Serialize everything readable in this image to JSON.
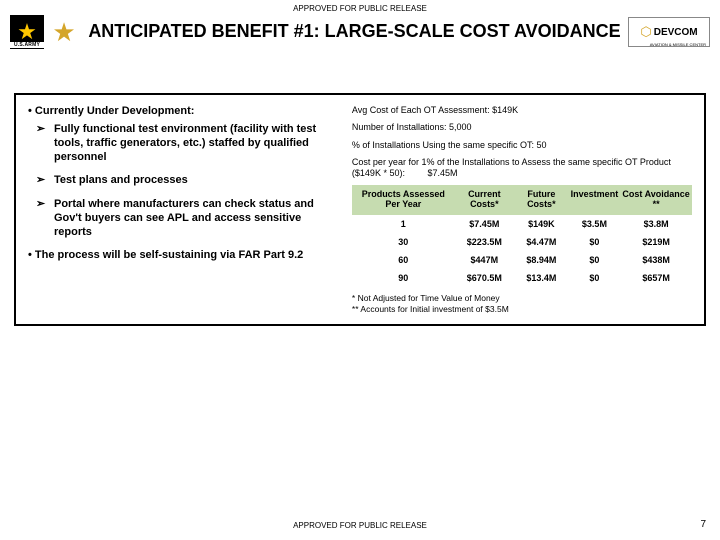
{
  "classification": "APPROVED FOR PUBLIC RELEASE",
  "title": "ANTICIPATED BENEFIT #1:  LARGE-SCALE COST AVOIDANCE",
  "logos": {
    "army_label": "U.S.ARMY",
    "devcom_text": "DEVCOM",
    "devcom_sub": "AVIATION & MISSILE CENTER"
  },
  "left": {
    "heading1": "• Currently Under Development:",
    "bullets": [
      "Fully functional test environment (facility with test tools, traffic generators, etc.) staffed by qualified personnel",
      "Test plans and processes",
      "Portal where manufacturers can check status and Gov't buyers can see APL and access sensitive reports"
    ],
    "heading2": "• The process will be self-sustaining via FAR Part 9.2"
  },
  "right": {
    "lines": [
      "Avg Cost of Each OT Assessment: $149K",
      "Number of Installations: 5,000",
      "% of Installations Using the same specific OT: 50",
      "Cost per year for 1% of the Installations to Assess the same specific OT Product ($149K * 50):"
    ],
    "calc_result": "$7.45M",
    "table": {
      "columns": [
        "Products Assessed Per Year",
        "Current Costs*",
        "Future Costs*",
        "Investment",
        "Cost Avoidance **"
      ],
      "rows": [
        [
          "1",
          "$7.45M",
          "$149K",
          "$3.5M",
          "$3.8M"
        ],
        [
          "30",
          "$223.5M",
          "$4.47M",
          "$0",
          "$219M"
        ],
        [
          "60",
          "$447M",
          "$8.94M",
          "$0",
          "$438M"
        ],
        [
          "90",
          "$670.5M",
          "$13.4M",
          "$0",
          "$657M"
        ]
      ],
      "header_bg": "#c6dcb0"
    },
    "footnote1": "* Not Adjusted for Time Value of Money",
    "footnote2": "** Accounts for Initial investment of $3.5M"
  },
  "page_number": "7"
}
